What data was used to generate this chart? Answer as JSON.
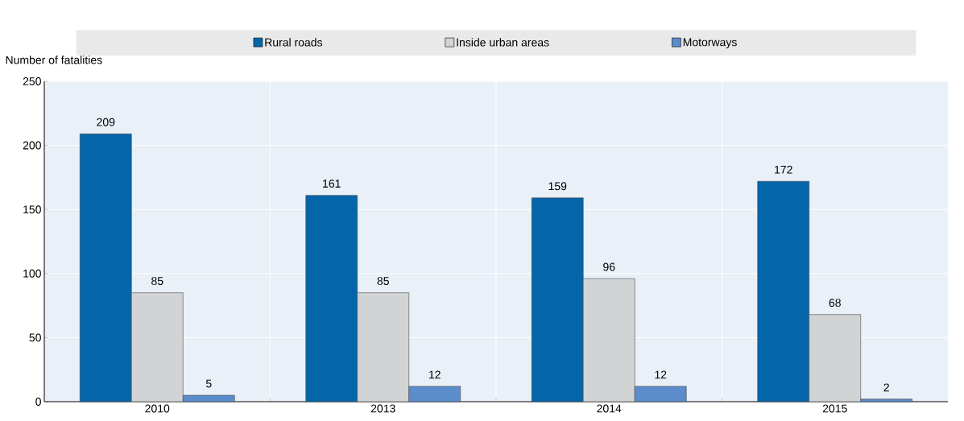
{
  "chart_data": {
    "type": "bar",
    "ylabel": "Number of fatalities",
    "categories": [
      "2010",
      "2013",
      "2014",
      "2015"
    ],
    "series": [
      {
        "name": "Rural roads",
        "color": "#0565a9",
        "values": [
          209,
          161,
          159,
          172
        ]
      },
      {
        "name": "Inside urban areas",
        "color": "#d2d3d5",
        "values": [
          85,
          85,
          96,
          68
        ]
      },
      {
        "name": "Motorways",
        "color": "#5b8ccc",
        "values": [
          5,
          12,
          12,
          2
        ]
      }
    ],
    "ylim": [
      0,
      250
    ],
    "yticks": [
      0,
      50,
      100,
      150,
      200,
      250
    ],
    "grid": true,
    "legend": "top",
    "data_labels": true
  }
}
